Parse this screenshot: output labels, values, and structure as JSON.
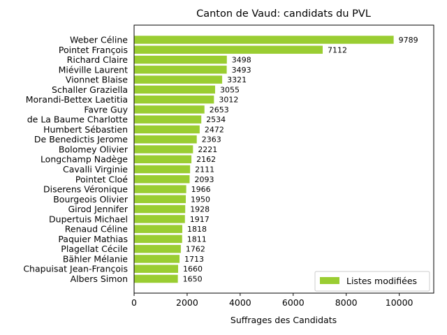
{
  "chart_data": {
    "type": "bar",
    "orientation": "horizontal",
    "title": "Canton de Vaud: candidats du PVL",
    "xlabel": "Suffrages des Candidats",
    "ylabel": "",
    "xlim": [
      0,
      11300
    ],
    "xticks": [
      0,
      2000,
      4000,
      6000,
      8000,
      10000
    ],
    "xtick_labels": [
      "0",
      "2000",
      "4000",
      "6000",
      "8000",
      "10000"
    ],
    "grid": false,
    "legend_position": "lower-right",
    "bar_color": "#9acd32",
    "categories": [
      "Weber Céline",
      "Pointet François",
      "Richard Claire",
      "Miéville Laurent",
      "Vionnet Blaise",
      "Schaller Graziella",
      "Morandi-Bettex Laetitia",
      "Favre Guy",
      "de La Baume Charlotte",
      "Humbert Sébastien",
      "De Benedictis Jerome",
      "Bolomey Olivier",
      "Longchamp Nadège",
      "Cavalli Virginie",
      "Pointet Cloé",
      "Diserens Véronique",
      "Bourgeois Olivier",
      "Girod Jennifer",
      "Dupertuis Michael",
      "Renaud Céline",
      "Paquier Mathias",
      "Plagellat Cécile",
      "Bähler Mélanie",
      "Chapuisat Jean-François",
      "Albers Simon"
    ],
    "series": [
      {
        "name": "Listes modifiées",
        "values": [
          9789,
          7112,
          3498,
          3493,
          3321,
          3055,
          3012,
          2653,
          2534,
          2472,
          2363,
          2221,
          2162,
          2111,
          2093,
          1966,
          1950,
          1928,
          1917,
          1818,
          1811,
          1762,
          1713,
          1660,
          1650
        ]
      }
    ]
  }
}
